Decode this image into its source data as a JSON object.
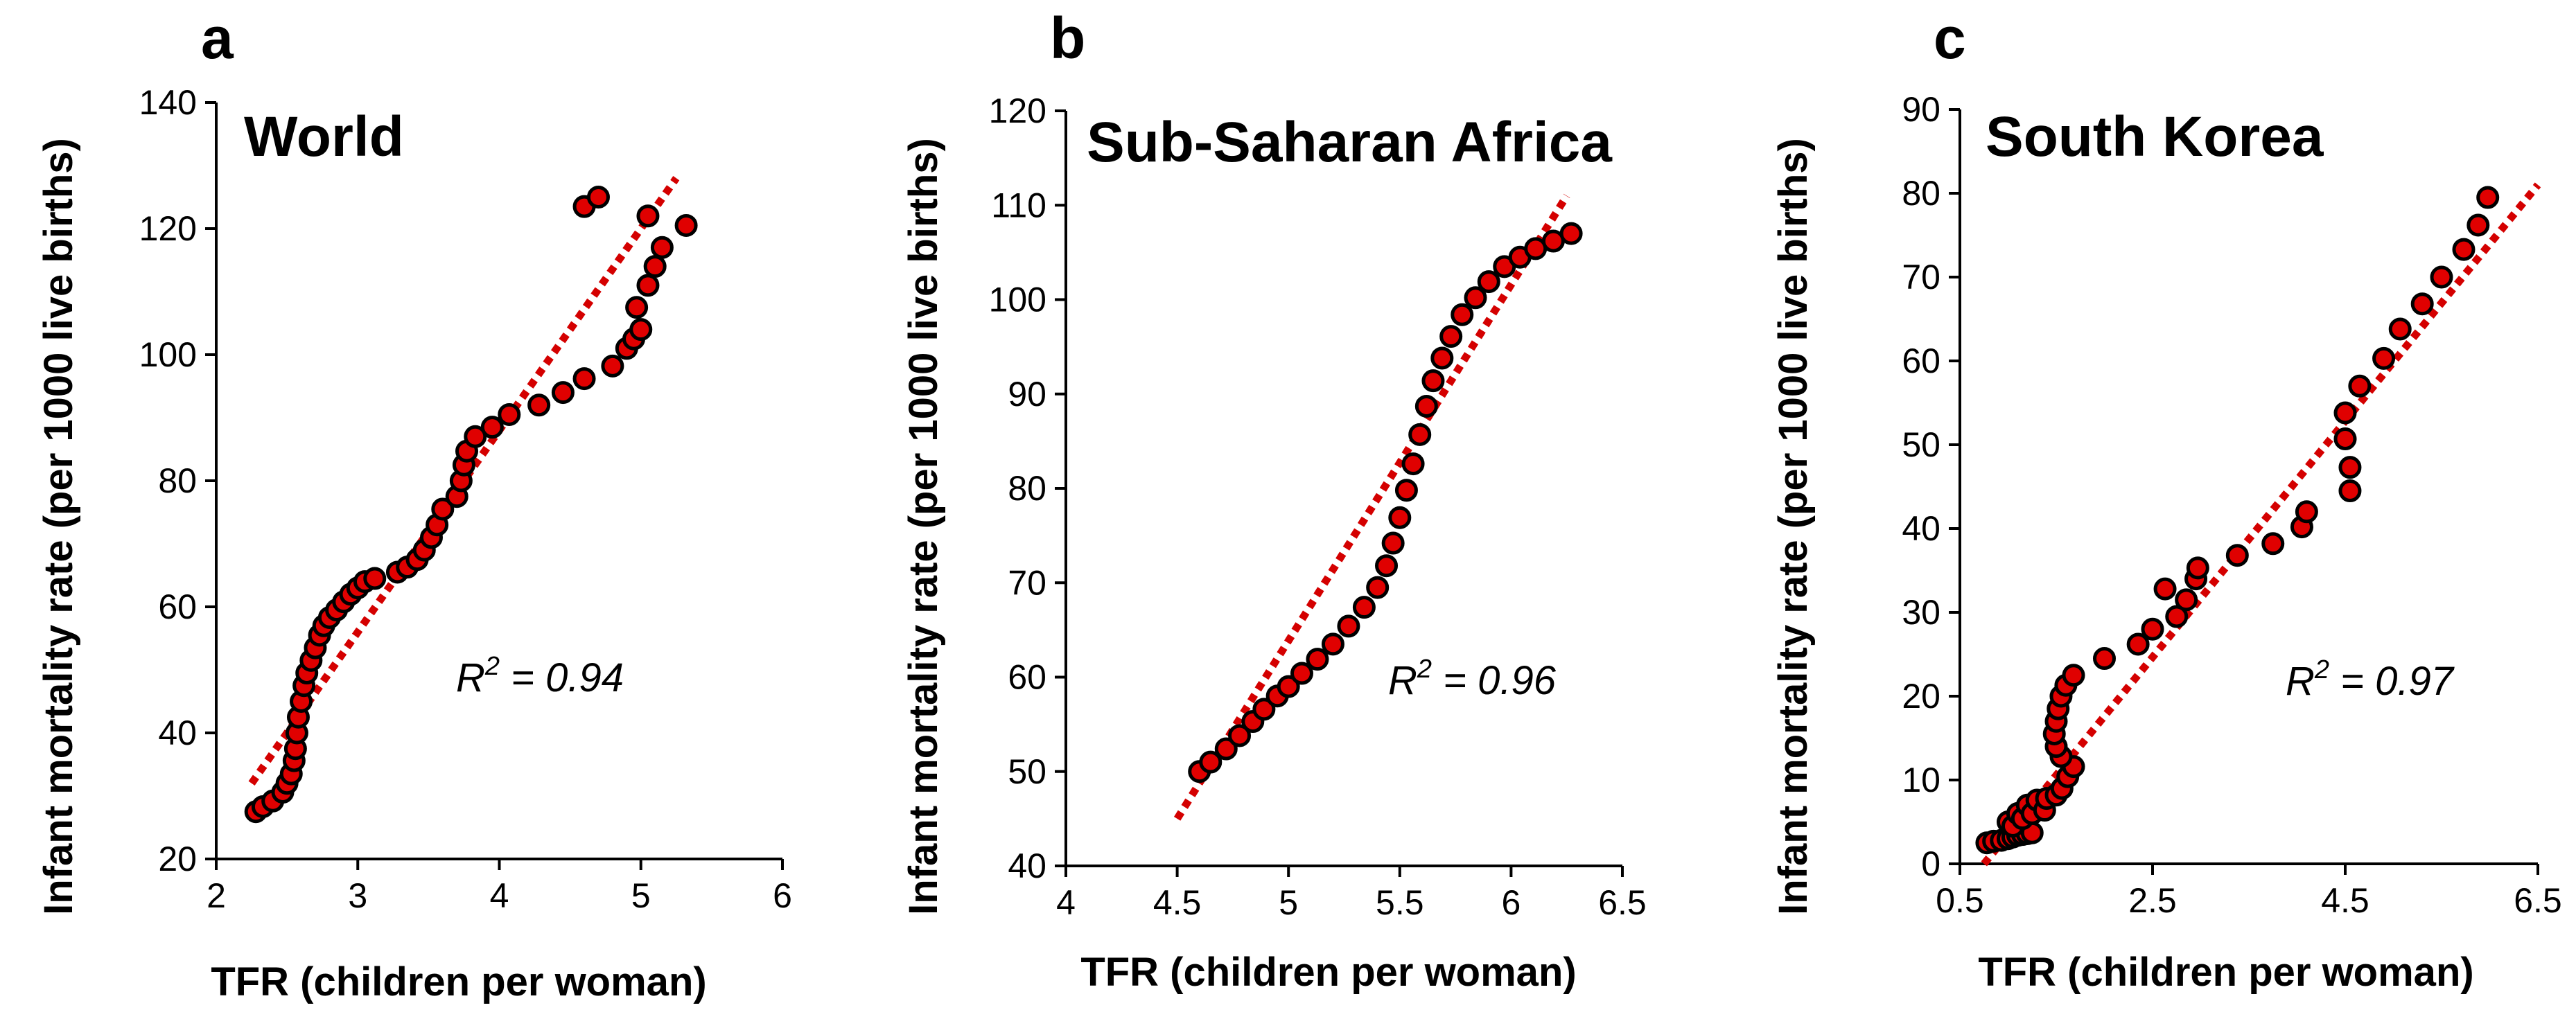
{
  "chart_data": [
    {
      "type": "scatter",
      "panel": "a",
      "title": "World",
      "xlabel": "TFR (children per woman)",
      "ylabel": "Infant mortality rate (per 1000 live births)",
      "xlim": [
        2,
        6
      ],
      "ylim": [
        20,
        140
      ],
      "xticks": [
        2,
        3,
        4,
        5,
        6
      ],
      "yticks": [
        20,
        40,
        60,
        80,
        100,
        120,
        140
      ],
      "xtick_labels": [
        "2",
        "3",
        "4",
        "5",
        "6"
      ],
      "ytick_labels": [
        "20",
        "40",
        "60",
        "80",
        "100",
        "120",
        "140"
      ],
      "r2_prefix": "R",
      "r2_sup": "2",
      "r2_value": " = 0.94",
      "trendline": {
        "x": [
          2.25,
          5.25
        ],
        "y": [
          32,
          128
        ]
      },
      "points": [
        [
          2.28,
          27.5
        ],
        [
          2.33,
          28.3
        ],
        [
          2.4,
          29.2
        ],
        [
          2.47,
          30.6
        ],
        [
          2.5,
          32
        ],
        [
          2.53,
          33.5
        ],
        [
          2.55,
          35.6
        ],
        [
          2.56,
          37.5
        ],
        [
          2.57,
          40
        ],
        [
          2.58,
          42.5
        ],
        [
          2.6,
          45
        ],
        [
          2.62,
          47.5
        ],
        [
          2.64,
          49.5
        ],
        [
          2.67,
          51.5
        ],
        [
          2.7,
          53.5
        ],
        [
          2.73,
          55.5
        ],
        [
          2.76,
          57
        ],
        [
          2.8,
          58.3
        ],
        [
          2.85,
          59.5
        ],
        [
          2.9,
          60.8
        ],
        [
          2.95,
          62
        ],
        [
          3.0,
          63
        ],
        [
          3.05,
          64
        ],
        [
          3.12,
          64.5
        ],
        [
          3.28,
          65.5
        ],
        [
          3.35,
          66.3
        ],
        [
          3.42,
          67.5
        ],
        [
          3.47,
          69
        ],
        [
          3.52,
          71
        ],
        [
          3.56,
          73
        ],
        [
          3.6,
          75.5
        ],
        [
          3.7,
          77.5
        ],
        [
          3.73,
          80
        ],
        [
          3.75,
          82.5
        ],
        [
          3.77,
          84.7
        ],
        [
          3.83,
          87
        ],
        [
          3.95,
          88.5
        ],
        [
          4.07,
          90.5
        ],
        [
          4.28,
          92
        ],
        [
          4.45,
          94
        ],
        [
          4.6,
          96.2
        ],
        [
          4.8,
          98.2
        ],
        [
          4.9,
          101
        ],
        [
          4.95,
          102.5
        ],
        [
          4.97,
          107.5
        ],
        [
          5.0,
          104
        ],
        [
          5.05,
          111
        ],
        [
          5.1,
          114
        ],
        [
          5.15,
          117
        ],
        [
          5.05,
          122
        ],
        [
          5.32,
          120.5
        ],
        [
          4.6,
          123.5
        ],
        [
          4.7,
          125
        ]
      ]
    },
    {
      "type": "scatter",
      "panel": "b",
      "title": "Sub-Saharan Africa",
      "xlabel": "TFR (children per woman)",
      "ylabel": "Infant mortality rate (per 1000 live births)",
      "xlim": [
        4,
        6.5
      ],
      "ylim": [
        40,
        120
      ],
      "xticks": [
        4,
        4.5,
        5,
        5.5,
        6,
        6.5
      ],
      "yticks": [
        40,
        50,
        60,
        70,
        80,
        90,
        100,
        110,
        120
      ],
      "xtick_labels": [
        "4",
        "4.5",
        "5",
        "5.5",
        "6",
        "6.5"
      ],
      "ytick_labels": [
        "40",
        "50",
        "60",
        "70",
        "80",
        "90",
        "100",
        "110",
        "120"
      ],
      "r2_prefix": "R",
      "r2_sup": "2",
      "r2_value": " = 0.96",
      "trendline": {
        "x": [
          4.5,
          6.25
        ],
        "y": [
          45,
          111
        ]
      },
      "points": [
        [
          4.6,
          50
        ],
        [
          4.65,
          51
        ],
        [
          4.72,
          52.4
        ],
        [
          4.78,
          53.8
        ],
        [
          4.84,
          55.3
        ],
        [
          4.89,
          56.6
        ],
        [
          4.95,
          58
        ],
        [
          5.0,
          59
        ],
        [
          5.06,
          60.4
        ],
        [
          5.13,
          61.9
        ],
        [
          5.2,
          63.5
        ],
        [
          5.27,
          65.4
        ],
        [
          5.34,
          67.4
        ],
        [
          5.4,
          69.5
        ],
        [
          5.44,
          71.8
        ],
        [
          5.47,
          74.2
        ],
        [
          5.5,
          76.9
        ],
        [
          5.53,
          79.8
        ],
        [
          5.56,
          82.6
        ],
        [
          5.59,
          85.7
        ],
        [
          5.62,
          88.7
        ],
        [
          5.65,
          91.4
        ],
        [
          5.69,
          93.8
        ],
        [
          5.73,
          96.1
        ],
        [
          5.78,
          98.4
        ],
        [
          5.84,
          100.2
        ],
        [
          5.9,
          101.9
        ],
        [
          5.97,
          103.5
        ],
        [
          6.04,
          104.5
        ],
        [
          6.11,
          105.4
        ],
        [
          6.19,
          106.2
        ],
        [
          6.27,
          107
        ]
      ]
    },
    {
      "type": "scatter",
      "panel": "c",
      "title": "South Korea",
      "xlabel": "TFR (children per woman)",
      "ylabel": "Infant mortality rate (per 1000 live births)",
      "xlim": [
        0.5,
        6.5
      ],
      "ylim": [
        0,
        90
      ],
      "xticks": [
        0.5,
        2.5,
        4.5,
        6.5
      ],
      "yticks": [
        0,
        10,
        20,
        30,
        40,
        50,
        60,
        70,
        80,
        90
      ],
      "xtick_labels": [
        "0.5",
        "2.5",
        "4.5",
        "6.5"
      ],
      "ytick_labels": [
        "0",
        "10",
        "20",
        "30",
        "40",
        "50",
        "60",
        "70",
        "80",
        "90"
      ],
      "r2_prefix": "R",
      "r2_sup": "2",
      "r2_value": " = 0.97",
      "trendline": {
        "x": [
          0.75,
          6.5
        ],
        "y": [
          0,
          81
        ]
      },
      "points": [
        [
          0.78,
          2.5
        ],
        [
          0.85,
          2.7
        ],
        [
          0.93,
          2.8
        ],
        [
          1.0,
          3
        ],
        [
          1.05,
          3.2
        ],
        [
          1.1,
          3.4
        ],
        [
          1.15,
          3.5
        ],
        [
          1.2,
          3.6
        ],
        [
          1.25,
          3.7
        ],
        [
          1.0,
          5
        ],
        [
          1.05,
          4.5
        ],
        [
          1.1,
          6
        ],
        [
          1.15,
          5.4
        ],
        [
          1.2,
          7
        ],
        [
          1.25,
          6
        ],
        [
          1.3,
          7.6
        ],
        [
          1.38,
          6.4
        ],
        [
          1.4,
          7.8
        ],
        [
          1.5,
          8.2
        ],
        [
          1.56,
          9
        ],
        [
          1.62,
          10.4
        ],
        [
          1.68,
          11.6
        ],
        [
          1.55,
          12.8
        ],
        [
          1.5,
          14
        ],
        [
          1.48,
          15.5
        ],
        [
          1.5,
          17
        ],
        [
          1.52,
          18.5
        ],
        [
          1.55,
          20
        ],
        [
          1.6,
          21.3
        ],
        [
          1.68,
          22.5
        ],
        [
          2.0,
          24.5
        ],
        [
          2.35,
          26.2
        ],
        [
          2.5,
          28
        ],
        [
          2.63,
          32.8
        ],
        [
          2.75,
          29.5
        ],
        [
          2.85,
          31.5
        ],
        [
          2.95,
          34
        ],
        [
          2.97,
          35.3
        ],
        [
          3.38,
          36.8
        ],
        [
          3.75,
          38.2
        ],
        [
          4.05,
          40.2
        ],
        [
          4.1,
          42
        ],
        [
          4.55,
          44.5
        ],
        [
          4.55,
          47.3
        ],
        [
          4.5,
          50.7
        ],
        [
          4.5,
          53.8
        ],
        [
          4.65,
          57
        ],
        [
          4.9,
          60.3
        ],
        [
          5.07,
          63.8
        ],
        [
          5.3,
          66.8
        ],
        [
          5.5,
          70
        ],
        [
          5.73,
          73.3
        ],
        [
          5.88,
          76.2
        ],
        [
          5.98,
          79.5
        ]
      ]
    }
  ]
}
